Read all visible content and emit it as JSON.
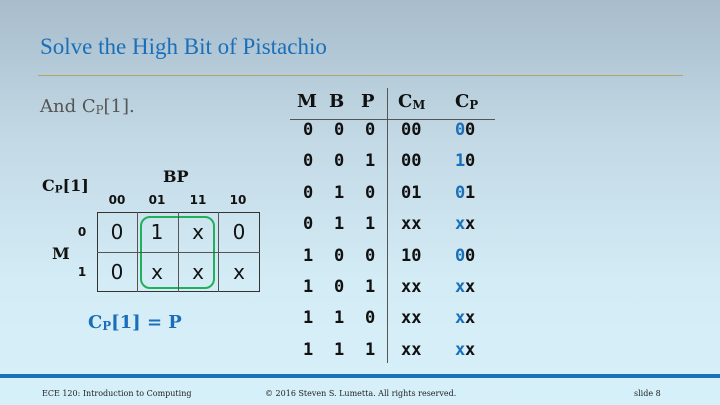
{
  "title": "Solve the High Bit of Pistachio",
  "subtitle": {
    "prefix": "And C",
    "sub": "P",
    "suffix": "[1]."
  },
  "kmap": {
    "label_main": "C",
    "label_sub": "P",
    "label_suffix": "[1]",
    "col_var": "BP",
    "row_var": "M",
    "col_labels": [
      "00",
      "01",
      "11",
      "10"
    ],
    "row_labels": [
      "0",
      "1"
    ],
    "cells": [
      [
        "0",
        "1",
        "x",
        "0"
      ],
      [
        "0",
        "x",
        "x",
        "x"
      ]
    ],
    "group_color": "#22b15a",
    "equation": {
      "prefix": "C",
      "sub": "P",
      "suffix": "[1] = P"
    }
  },
  "truth_table": {
    "headers": [
      "M",
      "B",
      "P"
    ],
    "cm_header": {
      "main": "C",
      "sub": "M"
    },
    "cp_header": {
      "main": "C",
      "sub": "P"
    },
    "rows": [
      {
        "m": "0",
        "b": "0",
        "p": "0",
        "cm": "00",
        "cp_hi": "0",
        "cp_lo": "0"
      },
      {
        "m": "0",
        "b": "0",
        "p": "1",
        "cm": "00",
        "cp_hi": "1",
        "cp_lo": "0"
      },
      {
        "m": "0",
        "b": "1",
        "p": "0",
        "cm": "01",
        "cp_hi": "0",
        "cp_lo": "1"
      },
      {
        "m": "0",
        "b": "1",
        "p": "1",
        "cm": "xx",
        "cp_hi": "x",
        "cp_lo": "x"
      },
      {
        "m": "1",
        "b": "0",
        "p": "0",
        "cm": "10",
        "cp_hi": "0",
        "cp_lo": "0"
      },
      {
        "m": "1",
        "b": "0",
        "p": "1",
        "cm": "xx",
        "cp_hi": "x",
        "cp_lo": "x"
      },
      {
        "m": "1",
        "b": "1",
        "p": "0",
        "cm": "xx",
        "cp_hi": "x",
        "cp_lo": "x"
      },
      {
        "m": "1",
        "b": "1",
        "p": "1",
        "cm": "xx",
        "cp_hi": "x",
        "cp_lo": "x"
      }
    ]
  },
  "footer": {
    "course": "ECE 120: Introduction to Computing",
    "copyright": "© 2016 Steven S. Lumetta.  All rights reserved.",
    "slide": "slide 8"
  },
  "colors": {
    "accent": "#1a6fb8",
    "footer_bar": "#1a73b8",
    "title_rule": "#b2a76a"
  }
}
